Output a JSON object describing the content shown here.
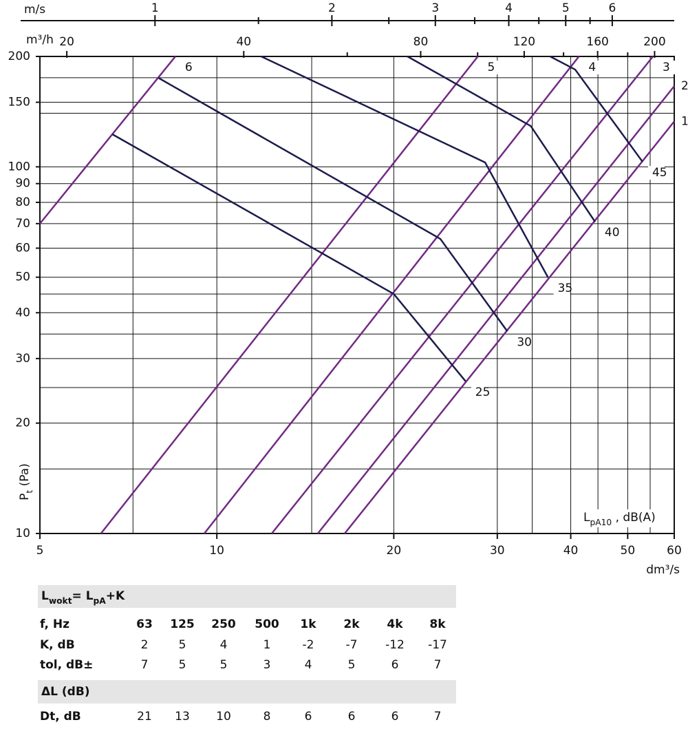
{
  "chart_data": {
    "type": "line",
    "xscale": "log",
    "yscale": "log",
    "xlim": [
      5,
      60
    ],
    "ylim": [
      10,
      200
    ],
    "xticks": [
      5,
      10,
      20,
      30,
      40,
      50,
      60
    ],
    "xgrid_minor": [
      7.2,
      14.5,
      34.4,
      44.5,
      54.6
    ],
    "yticks": [
      10,
      20,
      30,
      40,
      50,
      60,
      70,
      80,
      90,
      100,
      150,
      200
    ],
    "ygrid_minor": [
      15,
      25,
      35,
      45,
      140,
      175
    ],
    "grid": true,
    "x_unit": "dm³/s",
    "y_label": [
      {
        "text": "P"
      },
      {
        "text": "t",
        "sub": true
      },
      {
        "text": " (Pa)"
      }
    ],
    "curve_label": [
      {
        "text": "L"
      },
      {
        "text": "pA10",
        "sub": true
      },
      {
        "text": " , dB(A)"
      }
    ],
    "top_axes": [
      {
        "unit": "m/s",
        "xlim": [
          0.637,
          7.65
        ],
        "ticks": [
          1,
          2,
          3,
          4,
          5,
          6
        ],
        "minor_ticks": [
          1.5,
          2.5,
          3.5,
          4.5,
          5.5
        ],
        "line": true
      },
      {
        "unit": "m³/h",
        "xlim": [
          18,
          216
        ],
        "ticks": [
          20,
          40,
          80,
          120,
          160,
          200
        ],
        "minor_ticks": [
          60,
          100,
          140,
          180
        ],
        "line": false
      }
    ],
    "series": [
      {
        "name": "6",
        "color": "#722a83",
        "x": [
          5,
          8.5
        ],
        "values": [
          70,
          200
        ]
      },
      {
        "name": "5",
        "color": "#722a83",
        "x": [
          6.35,
          27.8
        ],
        "values": [
          10,
          200
        ]
      },
      {
        "name": "4",
        "color": "#722a83",
        "x": [
          9.52,
          41.3
        ],
        "values": [
          10,
          200
        ]
      },
      {
        "name": "3",
        "color": "#722a83",
        "x": [
          12.4,
          55.2
        ],
        "values": [
          10,
          200
        ]
      },
      {
        "name": "2",
        "color": "#722a83",
        "x": [
          14.85,
          60
        ],
        "values": [
          10,
          166
        ]
      },
      {
        "name": "1",
        "color": "#722a83",
        "x": [
          16.5,
          60
        ],
        "values": [
          10,
          133
        ]
      },
      {
        "name": "25",
        "color": "#1c1c4c",
        "x": [
          6.64,
          20.0,
          26.5
        ],
        "values": [
          122.7,
          45.0,
          26.0
        ]
      },
      {
        "name": "30",
        "color": "#1c1c4c",
        "x": [
          7.95,
          24.0,
          31.2
        ],
        "values": [
          174.9,
          63.6,
          35.6
        ]
      },
      {
        "name": "35",
        "color": "#1c1c4c",
        "x": [
          11.9,
          28.6,
          36.6
        ],
        "values": [
          200,
          102.8,
          49.9
        ]
      },
      {
        "name": "40",
        "color": "#1c1c4c",
        "x": [
          21.1,
          34.2,
          44.0
        ],
        "values": [
          200,
          129.2,
          70.8
        ]
      },
      {
        "name": "45",
        "color": "#1c1c4c",
        "x": [
          36.9,
          40.7,
          53.0
        ],
        "values": [
          200,
          184.2,
          103.2
        ]
      }
    ]
  },
  "table": {
    "title": [
      {
        "text": "L"
      },
      {
        "text": "wokt",
        "sub": true
      },
      {
        "text": "= L"
      },
      {
        "text": "pA",
        "sub": true
      },
      {
        "text": "+K"
      }
    ],
    "columns_label": "f, Hz",
    "columns": [
      "63",
      "125",
      "250",
      "500",
      "1k",
      "2k",
      "4k",
      "8k"
    ],
    "rows": [
      {
        "label": "K, dB",
        "values": [
          2,
          5,
          4,
          1,
          -2,
          -7,
          -12,
          -17
        ]
      },
      {
        "label": "tol, dB±",
        "values": [
          7,
          5,
          5,
          3,
          4,
          5,
          6,
          7
        ]
      }
    ],
    "section": "ΔL (dB)",
    "section_rows": [
      {
        "label": "Dt, dB",
        "values": [
          21,
          13,
          10,
          8,
          6,
          6,
          6,
          7
        ]
      }
    ]
  }
}
